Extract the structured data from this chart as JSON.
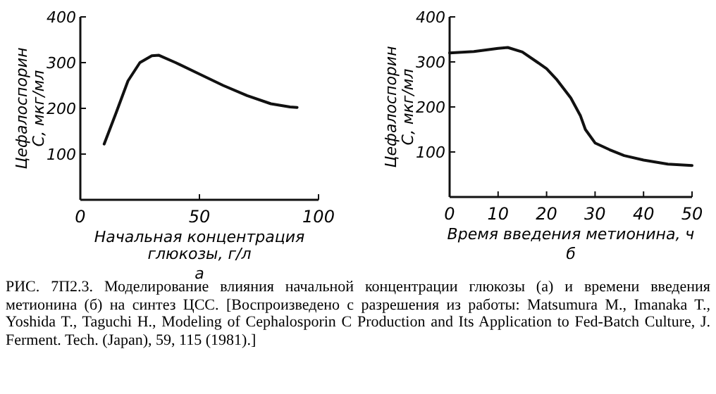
{
  "chart_data": [
    {
      "type": "line",
      "xlabel": "Начальная концентрация глюкозы, г/л",
      "ylabel": "Цефалоспорин С, мкг/мл",
      "xlim": [
        0,
        100
      ],
      "ylim": [
        0,
        400
      ],
      "xticks": [
        0,
        50,
        100
      ],
      "yticks": [
        100,
        200,
        300,
        400
      ],
      "annotations": [
        "а"
      ],
      "series": [
        {
          "color": "#111111",
          "x": [
            10,
            15,
            20,
            25,
            30,
            33,
            40,
            50,
            60,
            70,
            80,
            88,
            91
          ],
          "values": [
            122,
            190,
            260,
            300,
            315,
            316,
            300,
            275,
            250,
            228,
            210,
            203,
            202
          ]
        }
      ]
    },
    {
      "type": "line",
      "xlabel": "Время введения метионина, ч",
      "ylabel": "Цефалоспорин С, мкг/мл",
      "xlim": [
        0,
        50
      ],
      "ylim": [
        0,
        400
      ],
      "xticks": [
        0,
        10,
        20,
        30,
        40,
        50
      ],
      "yticks": [
        100,
        200,
        300,
        400
      ],
      "annotations": [
        "б",
        "РИС. 7П2.3. Моделирование влияния начальной концентрации глюкозы (а) и времени введения метионина (б) на синтез ЦСС. [Воспроизведено с разрешения из работы: Matsumura M., Imanaka T., Yoshida T., Taguchi H., Modeling of Cephalosporin C Production and Its Application to Fed-Batch Culture, J. Ferment. Tech. (Japan), 59, 115 (1981).]"
      ],
      "series": [
        {
          "color": "#111111",
          "x": [
            0,
            5,
            10,
            12,
            15,
            18,
            20,
            22,
            25,
            27,
            28,
            30,
            33,
            36,
            40,
            45,
            50
          ],
          "values": [
            320,
            323,
            330,
            332,
            322,
            300,
            285,
            262,
            220,
            180,
            150,
            120,
            105,
            92,
            82,
            73,
            70
          ]
        }
      ]
    }
  ]
}
